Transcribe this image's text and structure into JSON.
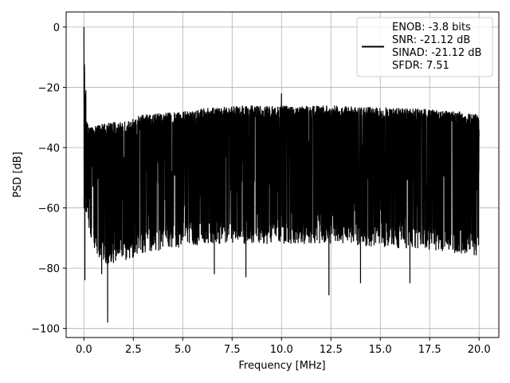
{
  "chart_data": {
    "type": "line",
    "title": "",
    "xlabel": "Frequency [MHz]",
    "ylabel": "PSD [dB]",
    "xlim": [
      -0.9,
      21.0
    ],
    "ylim": [
      -103,
      5
    ],
    "grid": true,
    "x_ticks": [
      0.0,
      2.5,
      5.0,
      7.5,
      10.0,
      12.5,
      15.0,
      17.5,
      20.0
    ],
    "x_tick_labels": [
      "0.0",
      "2.5",
      "5.0",
      "7.5",
      "10.0",
      "12.5",
      "15.0",
      "17.5",
      "20.0"
    ],
    "y_ticks": [
      0,
      -20,
      -40,
      -60,
      -80,
      -100
    ],
    "y_tick_labels": [
      "0",
      "−20",
      "−40",
      "−60",
      "−80",
      "−100"
    ],
    "series": [
      {
        "color": "#000000",
        "description": "dense noise-like PSD spectrum",
        "x_range": [
          0.0,
          20.0
        ],
        "peak": {
          "x": 0.0,
          "y": 0
        },
        "upper_envelope": {
          "x": [
            0.0,
            0.05,
            0.1,
            0.2,
            0.5,
            1.0,
            2.0,
            3.0,
            4.0,
            5.0,
            6.0,
            7.0,
            8.0,
            9.0,
            10.0,
            11.0,
            12.0,
            13.0,
            14.0,
            15.0,
            16.0,
            17.0,
            18.0,
            19.0,
            20.0
          ],
          "y": [
            0,
            -21,
            -30,
            -32,
            -33,
            -32,
            -31,
            -29,
            -28.5,
            -28,
            -27,
            -26.5,
            -26,
            -26,
            -26,
            -26,
            -26,
            -26,
            -26.5,
            -26.5,
            -27,
            -27,
            -27.5,
            -28,
            -29
          ]
        },
        "lower_envelope": {
          "x": [
            0.0,
            0.5,
            1.0,
            2.0,
            3.0,
            5.0,
            7.5,
            10.0,
            12.5,
            15.0,
            17.5,
            20.0
          ],
          "y": [
            -60,
            -76,
            -79,
            -78,
            -75,
            -73,
            -72,
            -72,
            -72,
            -73,
            -74,
            -76
          ]
        },
        "notable_dips": [
          {
            "x": 0.05,
            "y": -84
          },
          {
            "x": 0.9,
            "y": -82
          },
          {
            "x": 1.2,
            "y": -98
          },
          {
            "x": 6.6,
            "y": -82
          },
          {
            "x": 8.2,
            "y": -83
          },
          {
            "x": 12.4,
            "y": -89
          },
          {
            "x": 14.0,
            "y": -85
          },
          {
            "x": 16.5,
            "y": -85
          }
        ],
        "notable_peaks": [
          {
            "x": 10.0,
            "y": -22
          },
          {
            "x": 0.1,
            "y": -21
          }
        ]
      }
    ],
    "legend": {
      "placement": "top-right",
      "entries": [
        "ENOB: -3.8 bits",
        "SNR: -21.12 dB",
        "SINAD: -21.12 dB",
        "SFDR: 7.51"
      ]
    }
  }
}
